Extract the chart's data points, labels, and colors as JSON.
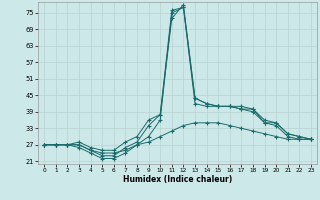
{
  "xlabel": "Humidex (Indice chaleur)",
  "bg_color": "#cde8e8",
  "grid_color": "#b8d0d0",
  "line_color": "#1a6b6b",
  "marker": "+",
  "xlim": [
    -0.5,
    23.5
  ],
  "ylim": [
    20,
    79
  ],
  "yticks": [
    21,
    27,
    33,
    39,
    45,
    51,
    57,
    63,
    69,
    75
  ],
  "xticks": [
    0,
    1,
    2,
    3,
    4,
    5,
    6,
    7,
    8,
    9,
    10,
    11,
    12,
    13,
    14,
    15,
    16,
    17,
    18,
    19,
    20,
    21,
    22,
    23
  ],
  "curves": [
    {
      "x": [
        0,
        1,
        2,
        3,
        4,
        5,
        6,
        7,
        8,
        9,
        10,
        11,
        12,
        13,
        14,
        15,
        16,
        17,
        18,
        19,
        20,
        21,
        22,
        23
      ],
      "y": [
        27,
        27,
        27,
        27,
        25,
        24,
        24,
        25,
        27,
        28,
        30,
        32,
        34,
        35,
        35,
        35,
        34,
        33,
        32,
        31,
        30,
        29,
        29,
        29
      ]
    },
    {
      "x": [
        0,
        1,
        2,
        3,
        4,
        5,
        6,
        7,
        8,
        9,
        10,
        11,
        12,
        13,
        14,
        15,
        16,
        17,
        18,
        19,
        20,
        21,
        22,
        23
      ],
      "y": [
        27,
        27,
        27,
        26,
        24,
        22,
        22,
        24,
        27,
        30,
        36,
        75,
        77,
        42,
        41,
        41,
        41,
        40,
        40,
        35,
        34,
        30,
        29,
        29
      ]
    },
    {
      "x": [
        0,
        1,
        2,
        3,
        4,
        5,
        6,
        7,
        8,
        9,
        10,
        11,
        12,
        13,
        14,
        15,
        16,
        17,
        18,
        19,
        20,
        21,
        22,
        23
      ],
      "y": [
        27,
        27,
        27,
        27,
        25,
        23,
        23,
        26,
        28,
        34,
        38,
        73,
        78,
        44,
        42,
        41,
        41,
        41,
        40,
        36,
        35,
        31,
        30,
        29
      ]
    },
    {
      "x": [
        0,
        1,
        2,
        3,
        4,
        5,
        6,
        7,
        8,
        9,
        10,
        11,
        12,
        13,
        14,
        15,
        16,
        17,
        18,
        19,
        20,
        21,
        22,
        23
      ],
      "y": [
        27,
        27,
        27,
        28,
        26,
        25,
        25,
        28,
        30,
        36,
        38,
        76,
        77,
        44,
        42,
        41,
        41,
        40,
        39,
        35,
        35,
        31,
        30,
        29
      ]
    }
  ]
}
